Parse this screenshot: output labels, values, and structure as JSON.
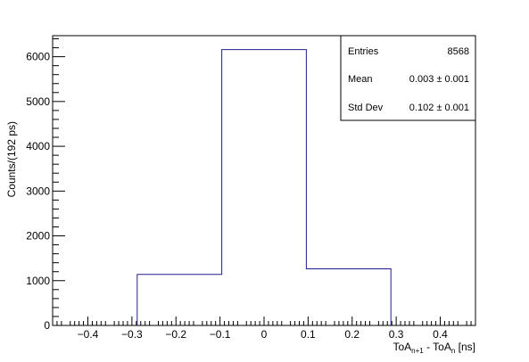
{
  "chart_data": {
    "type": "histogram",
    "xlim": [
      -0.48,
      0.48
    ],
    "ylim": [
      0,
      6470
    ],
    "bins": [
      {
        "x0": -0.288,
        "x1": -0.096,
        "value": 1140
      },
      {
        "x0": -0.096,
        "x1": 0.096,
        "value": 6160
      },
      {
        "x0": 0.096,
        "x1": 0.288,
        "value": 1265
      }
    ],
    "xticks": [
      -0.4,
      -0.3,
      -0.2,
      -0.1,
      0,
      0.1,
      0.2,
      0.3,
      0.4
    ],
    "xtick_labels": [
      "−0.4",
      "−0.3",
      "−0.2",
      "−0.1",
      "0",
      "0.1",
      "0.2",
      "0.3",
      "0.4"
    ],
    "yticks": [
      0,
      1000,
      2000,
      3000,
      4000,
      5000,
      6000
    ],
    "ytick_labels": [
      "0",
      "1000",
      "2000",
      "3000",
      "4000",
      "5000",
      "6000"
    ],
    "xlabel": {
      "main": "ToA",
      "sub1": "n+1",
      "mid": " - ToA",
      "sub2": "n",
      "tail": " [ns]"
    },
    "ylabel": "Counts/(192 ps)",
    "line_color": "#1f1f8f",
    "stats": {
      "entries_label": "Entries",
      "entries_value": "8568",
      "mean_label": "Mean",
      "mean_value": "0.003 ±  0.001",
      "stddev_label": "Std Dev",
      "stddev_value": "0.102 ±  0.001"
    }
  }
}
